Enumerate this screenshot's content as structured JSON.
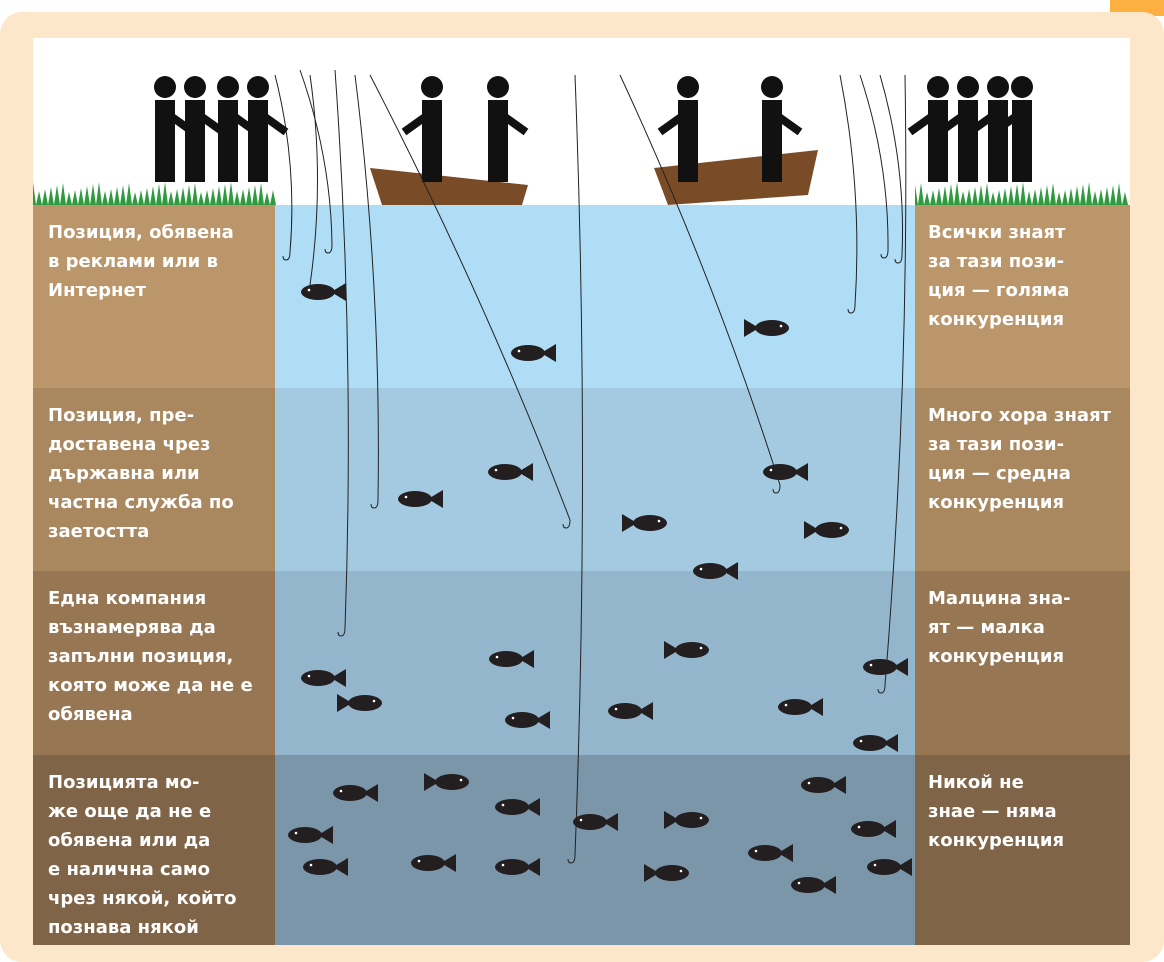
{
  "left_labels": [
    [
      "Позиция, обявена",
      "в реклами или в",
      "Интернет"
    ],
    [
      "Позиция, пре-",
      "доставена чрез",
      "държавна или",
      "частна служба по",
      "заетостта"
    ],
    [
      "Една компания",
      "възнамерява да",
      "запълни позиция,",
      "която може да не е",
      "обявена"
    ],
    [
      "Позицията мо-",
      "же още да не е",
      "обявена или да",
      "е налична само",
      "чрез някой, който",
      "познава някой"
    ]
  ],
  "right_labels": [
    [
      "Всички знаят",
      "за тази пози-",
      "ция — голяма",
      "конкуренция"
    ],
    [
      "Много хора знаят",
      "за тази пози-",
      "ция — средна",
      "конкуренция"
    ],
    [
      "Малцина зна-",
      "ят — малка",
      "конкуренция"
    ],
    [
      "Никой не",
      "знае — няма",
      "конкуренция"
    ]
  ]
}
